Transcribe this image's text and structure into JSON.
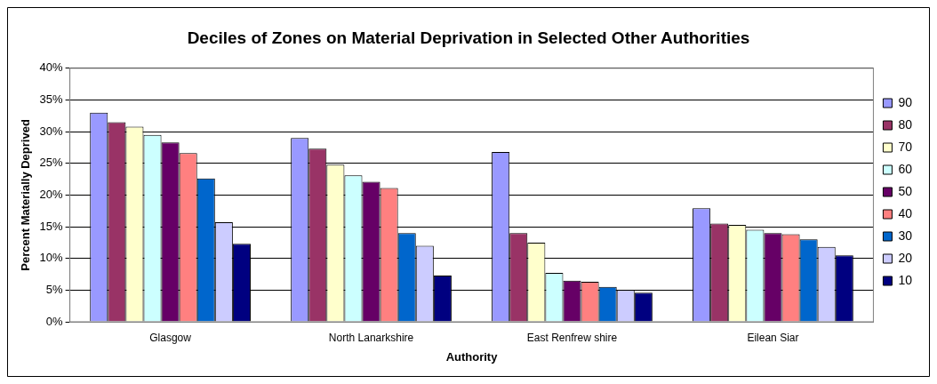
{
  "chart_data": {
    "type": "bar",
    "title": "Deciles of Zones on Material Deprivation in Selected Other Authorities",
    "xlabel": "Authority",
    "ylabel": "Percent Materially Deprived",
    "categories": [
      "Glasgow",
      "North Lanarkshire",
      "East Renfrew shire",
      "Eilean Siar"
    ],
    "series": [
      {
        "name": "90",
        "color": "#9999ff",
        "values": [
          33,
          29,
          26.8,
          17.9
        ]
      },
      {
        "name": "80",
        "color": "#993366",
        "values": [
          31.5,
          27.3,
          14,
          15.5
        ]
      },
      {
        "name": "70",
        "color": "#ffffcc",
        "values": [
          30.8,
          24.8,
          12.5,
          15.3
        ]
      },
      {
        "name": "60",
        "color": "#ccffff",
        "values": [
          29.5,
          23.1,
          7.7,
          14.5
        ]
      },
      {
        "name": "50",
        "color": "#660066",
        "values": [
          28.3,
          22.1,
          6.5,
          14
        ]
      },
      {
        "name": "40",
        "color": "#ff8080",
        "values": [
          26.6,
          21.1,
          6.3,
          13.8
        ]
      },
      {
        "name": "30",
        "color": "#0066cc",
        "values": [
          22.6,
          14,
          5.5,
          13
        ]
      },
      {
        "name": "20",
        "color": "#ccccff",
        "values": [
          15.7,
          12,
          5,
          11.8
        ]
      },
      {
        "name": "10",
        "color": "#000080",
        "values": [
          12.3,
          7.3,
          4.6,
          10.5
        ]
      }
    ],
    "ylim": [
      0,
      40
    ],
    "yticks": [
      {
        "value": 0,
        "label": "0%"
      },
      {
        "value": 5,
        "label": "5%"
      },
      {
        "value": 10,
        "label": "10%"
      },
      {
        "value": 15,
        "label": "15%"
      },
      {
        "value": 20,
        "label": "20%"
      },
      {
        "value": 25,
        "label": "25%"
      },
      {
        "value": 30,
        "label": "30%"
      },
      {
        "value": 35,
        "label": "35%"
      },
      {
        "value": 40,
        "label": "40%"
      }
    ],
    "grid": "y",
    "legend": "right"
  }
}
